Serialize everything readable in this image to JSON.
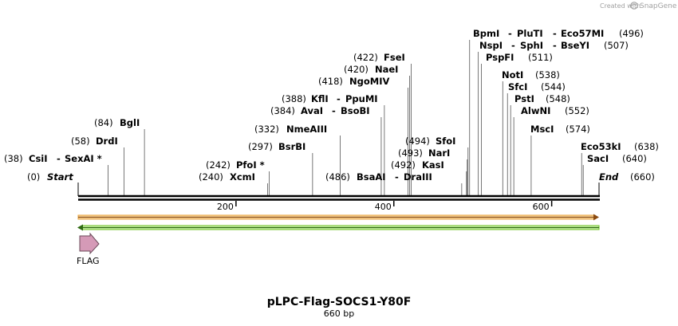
{
  "header": {
    "credit_prefix": "Created with",
    "brand": "SnapGene"
  },
  "plasmid": {
    "name": "pLPC-Flag-SOCS1-Y80F",
    "length_label": "660 bp",
    "length": 660
  },
  "ruler": {
    "ticks": [
      {
        "pos": 200,
        "label": "200"
      },
      {
        "pos": 400,
        "label": "400"
      },
      {
        "pos": 600,
        "label": "600"
      }
    ]
  },
  "features": [
    {
      "name": "FLAG",
      "start": 1,
      "end": 24,
      "color": "#d59ab7"
    }
  ],
  "strands": {
    "forward_color": "#f0a020",
    "reverse_color": "#6cc020"
  },
  "ends": [
    {
      "label": "Start",
      "pos": "(0)"
    },
    {
      "label": "End",
      "pos": "(660)"
    }
  ],
  "sites": [
    {
      "pos": "(38)",
      "names": [
        "CsiI",
        "SexAI *"
      ],
      "bp": 38
    },
    {
      "pos": "(58)",
      "names": [
        "DrdI"
      ],
      "bp": 58
    },
    {
      "pos": "(84)",
      "names": [
        "BglI"
      ],
      "bp": 84
    },
    {
      "pos": "(240)",
      "names": [
        "XcmI"
      ],
      "bp": 240
    },
    {
      "pos": "(242)",
      "names": [
        "PfoI *"
      ],
      "bp": 242
    },
    {
      "pos": "(297)",
      "names": [
        "BsrBI"
      ],
      "bp": 297
    },
    {
      "pos": "(332)",
      "names": [
        "NmeAIII"
      ],
      "bp": 332
    },
    {
      "pos": "(384)",
      "names": [
        "AvaI",
        "BsoBI"
      ],
      "bp": 384
    },
    {
      "pos": "(388)",
      "names": [
        "KflI",
        "PpuMI"
      ],
      "bp": 388
    },
    {
      "pos": "(418)",
      "names": [
        "NgoMIV"
      ],
      "bp": 418
    },
    {
      "pos": "(420)",
      "names": [
        "NaeI"
      ],
      "bp": 420
    },
    {
      "pos": "(422)",
      "names": [
        "FseI"
      ],
      "bp": 422
    },
    {
      "pos": "(486)",
      "names": [
        "BsaAI",
        "DraIII"
      ],
      "bp": 486
    },
    {
      "pos": "(492)",
      "names": [
        "KasI"
      ],
      "bp": 492
    },
    {
      "pos": "(493)",
      "names": [
        "NarI"
      ],
      "bp": 493
    },
    {
      "pos": "(494)",
      "names": [
        "SfoI"
      ],
      "bp": 494
    },
    {
      "pos": "(496)",
      "names": [
        "BpmI",
        "PluTI",
        "Eco57MI"
      ],
      "bp": 496
    },
    {
      "pos": "(507)",
      "names": [
        "NspI",
        "SphI",
        "BseYI"
      ],
      "bp": 507
    },
    {
      "pos": "(511)",
      "names": [
        "PspFI"
      ],
      "bp": 511
    },
    {
      "pos": "(538)",
      "names": [
        "NotI"
      ],
      "bp": 538
    },
    {
      "pos": "(544)",
      "names": [
        "SfcI"
      ],
      "bp": 544
    },
    {
      "pos": "(548)",
      "names": [
        "PstI"
      ],
      "bp": 548
    },
    {
      "pos": "(552)",
      "names": [
        "AlwNI"
      ],
      "bp": 552
    },
    {
      "pos": "(574)",
      "names": [
        "MscI"
      ],
      "bp": 574
    },
    {
      "pos": "(638)",
      "names": [
        "Eco53kI"
      ],
      "bp": 638
    },
    {
      "pos": "(640)",
      "names": [
        "SacI"
      ],
      "bp": 640
    }
  ]
}
